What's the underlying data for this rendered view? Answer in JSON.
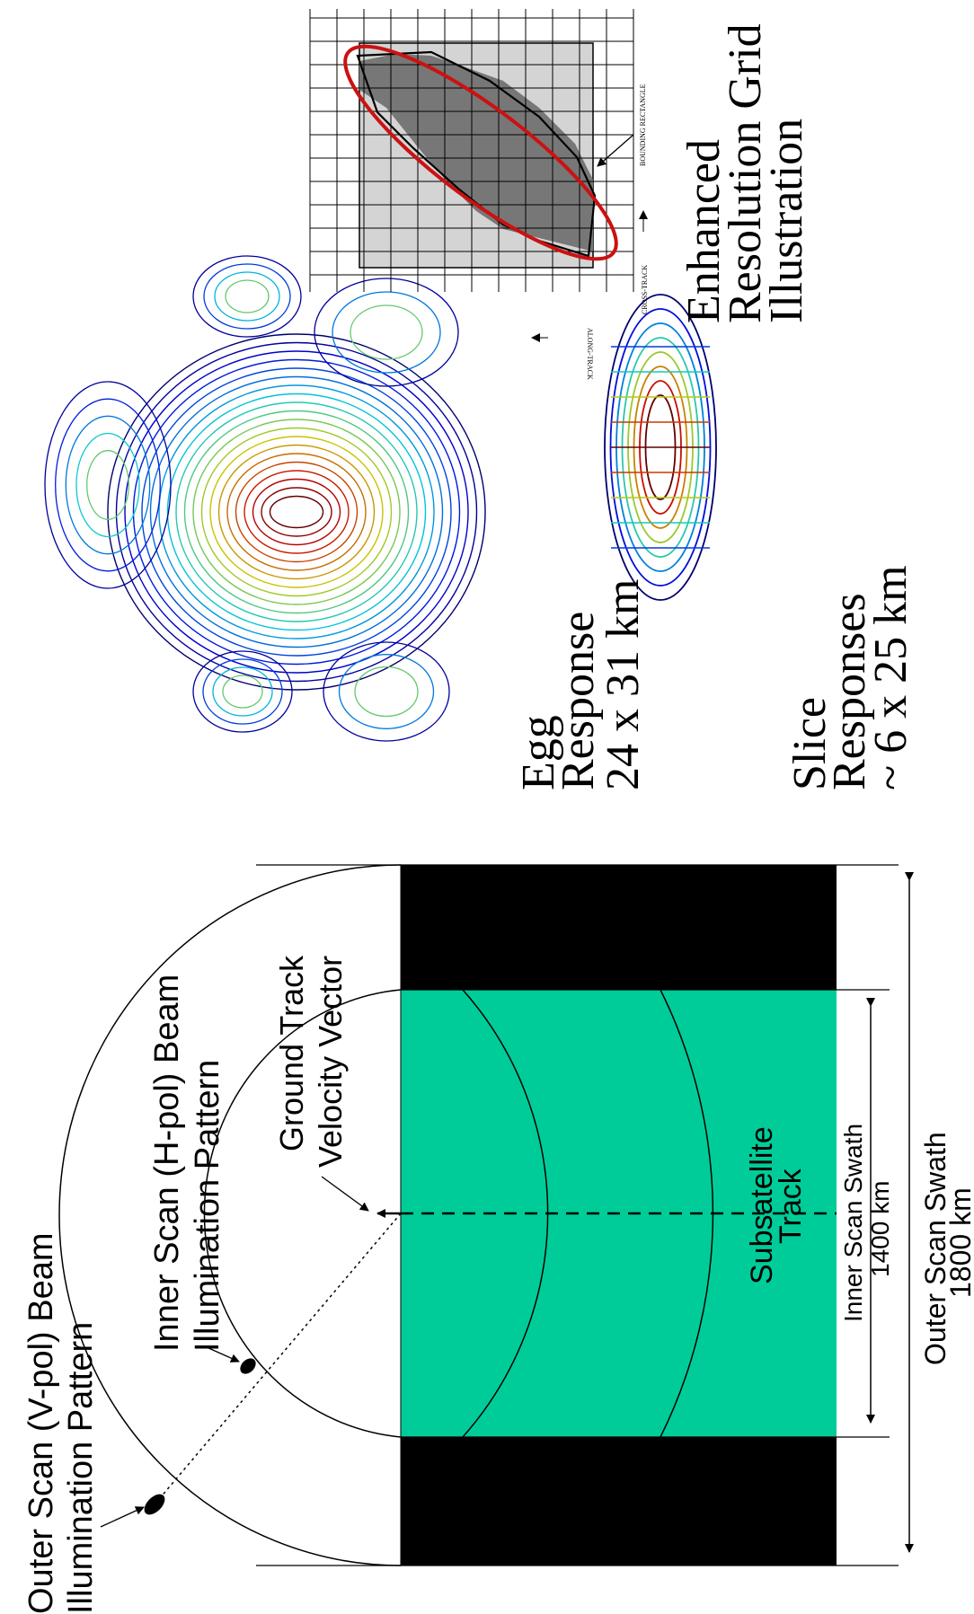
{
  "scan_diagram": {
    "outer_beam_label": "Outer Scan (V-pol) Beam",
    "outer_beam_label_2": "Illumination Pattern",
    "inner_beam_label": "Inner Scan (H-pol) Beam",
    "inner_beam_label_2": "Illumination Pattern",
    "ground_track_label": "Ground Track",
    "ground_track_label_2": "Velocity Vector",
    "subsatellite_label": "Subsatellite",
    "subsatellite_label_2": "Track",
    "inner_swath_label": "Inner Scan Swath",
    "inner_swath_value": "1400 km",
    "outer_swath_label": "Outer Scan Swath",
    "outer_swath_value": "1800 km",
    "colors": {
      "inner_swath": "#00cc99",
      "outer_swath": "#000000"
    }
  },
  "response_panel": {
    "egg_label": "Egg",
    "egg_label_2": "Response",
    "egg_size": "24 x 31 km",
    "slice_label": "Slice",
    "slice_label_2": "Responses",
    "slice_size": "~ 6 x 25 km"
  },
  "grid_panel": {
    "bounding_rect_label": "BOUNDING RECTANGLE",
    "cross_track_label": "CROSS-TRACK",
    "along_track_label": "ALONG-TRACK",
    "title_line1": "Enhanced",
    "title_line2": "Resolution Grid",
    "title_line3": "Illustration",
    "colors": {
      "ellipse": "#cc1111",
      "footprint": "#777777",
      "bounding": "#d4d4d4"
    }
  }
}
